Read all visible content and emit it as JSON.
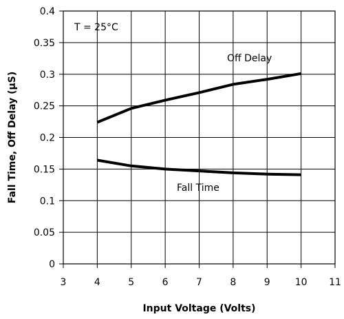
{
  "chart_data": {
    "type": "line",
    "xlabel": "Input Voltage (Volts)",
    "ylabel": "Fall Time,  Off Delay  (μS)",
    "xlim": [
      3,
      11
    ],
    "ylim": [
      0,
      0.4
    ],
    "x_ticks": [
      3,
      4,
      5,
      6,
      7,
      8,
      9,
      10,
      11
    ],
    "y_ticks": [
      0,
      0.05,
      0.1,
      0.15,
      0.2,
      0.25,
      0.3,
      0.35,
      0.4
    ],
    "x_tick_labels": [
      "3",
      "4",
      "5",
      "6",
      "7",
      "8",
      "9",
      "10",
      "11"
    ],
    "y_tick_labels": [
      "0",
      "0.05",
      "0.1",
      "0.15",
      "0.2",
      "0.25",
      "0.3",
      "0.35",
      "0.4"
    ],
    "grid": true,
    "annotation": "T = 25°C",
    "series": [
      {
        "name": "Off Delay",
        "x": [
          4,
          5,
          6,
          7,
          8,
          9,
          10
        ],
        "values": [
          0.224,
          0.246,
          0.259,
          0.271,
          0.284,
          0.292,
          0.301
        ]
      },
      {
        "name": "Fall Time",
        "x": [
          4,
          5,
          6,
          7,
          8,
          9,
          10
        ],
        "values": [
          0.164,
          0.155,
          0.15,
          0.147,
          0.144,
          0.142,
          0.141
        ]
      }
    ]
  }
}
